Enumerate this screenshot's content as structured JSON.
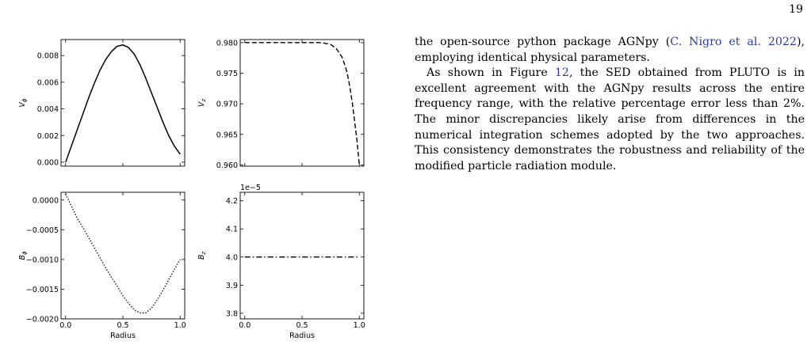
{
  "page": {
    "number": "19"
  },
  "text": {
    "p1_before": "the open-source python package AGNpy (",
    "p1_cite": "C. Nigro et al. 2022",
    "p1_after": "), employing identical physical parameters.",
    "p2_before": "As shown in Figure ",
    "p2_figref": "12",
    "p2_after": ", the SED obtained from PLUTO is in excellent agreement with the AGNpy results across the entire frequency range, with the relative percentage error less than 2%. The minor discrepancies likely arise from differences in the numerical integration schemes adopted by the two approaches. This consistency demonstrates the robustness and reliability of the modified particle radiation module."
  },
  "chart_data": [
    {
      "type": "line",
      "ylabel": "V_ϕ",
      "xlabel": "",
      "xlim": [
        -0.04,
        1.04
      ],
      "ylim": [
        -0.0003,
        0.0092
      ],
      "yticks": [
        0.0,
        0.002,
        0.004,
        0.006,
        0.008
      ],
      "ytick_labels": [
        "0.000",
        "0.002",
        "0.004",
        "0.006",
        "0.008"
      ],
      "xticks": [
        0.0,
        0.5,
        1.0
      ],
      "xtick_labels": [],
      "offset_text": "",
      "line_style": "solid",
      "x": [
        0.0,
        0.05,
        0.1,
        0.15,
        0.2,
        0.25,
        0.3,
        0.35,
        0.4,
        0.45,
        0.5,
        0.55,
        0.6,
        0.65,
        0.7,
        0.75,
        0.8,
        0.85,
        0.9,
        0.95,
        1.0
      ],
      "y": [
        0.0,
        0.0012,
        0.0024,
        0.0036,
        0.0048,
        0.0059,
        0.0069,
        0.0077,
        0.0083,
        0.0087,
        0.0088,
        0.0086,
        0.0081,
        0.0073,
        0.0063,
        0.0052,
        0.0041,
        0.003,
        0.002,
        0.0012,
        0.0006
      ]
    },
    {
      "type": "line",
      "ylabel": "V_z",
      "xlabel": "",
      "xlim": [
        -0.04,
        1.04
      ],
      "ylim": [
        0.9598,
        0.9805
      ],
      "yticks": [
        0.96,
        0.965,
        0.97,
        0.975,
        0.98
      ],
      "ytick_labels": [
        "0.960",
        "0.965",
        "0.970",
        "0.975",
        "0.980"
      ],
      "xticks": [
        0.0,
        0.5,
        1.0
      ],
      "xtick_labels": [],
      "offset_text": "",
      "line_style": "dashed",
      "x": [
        0.0,
        0.1,
        0.2,
        0.3,
        0.4,
        0.5,
        0.6,
        0.65,
        0.7,
        0.75,
        0.8,
        0.85,
        0.88,
        0.9,
        0.92,
        0.94,
        0.96,
        0.98,
        1.0
      ],
      "y": [
        0.98,
        0.98,
        0.98,
        0.98,
        0.98,
        0.98,
        0.98,
        0.98,
        0.9799,
        0.9797,
        0.979,
        0.9776,
        0.976,
        0.9745,
        0.9725,
        0.97,
        0.967,
        0.964,
        0.96
      ]
    },
    {
      "type": "line",
      "ylabel": "B_ϕ",
      "xlabel": "Radius",
      "xlim": [
        -0.04,
        1.04
      ],
      "ylim": [
        -0.002,
        0.00013
      ],
      "yticks": [
        0.0,
        -0.0005,
        -0.001,
        -0.0015,
        -0.002
      ],
      "ytick_labels": [
        "0.0000",
        "−0.0005",
        "−0.0010",
        "−0.0015",
        "−0.0020"
      ],
      "xticks": [
        0.0,
        0.5,
        1.0
      ],
      "xtick_labels": [
        "0.0",
        "0.5",
        "1.0"
      ],
      "offset_text": "",
      "line_style": "dotted",
      "x": [
        0.0,
        0.05,
        0.1,
        0.15,
        0.2,
        0.25,
        0.3,
        0.35,
        0.4,
        0.45,
        0.5,
        0.55,
        0.6,
        0.65,
        0.7,
        0.75,
        0.8,
        0.85,
        0.9,
        0.95,
        1.0
      ],
      "y": [
        0.0001,
        -0.0001,
        -0.0003,
        -0.00046,
        -0.00063,
        -0.0008,
        -0.00097,
        -0.00114,
        -0.0013,
        -0.00145,
        -0.00161,
        -0.00174,
        -0.00185,
        -0.0019,
        -0.0019,
        -0.00182,
        -0.00168,
        -0.00152,
        -0.00134,
        -0.00117,
        -0.001
      ]
    },
    {
      "type": "line",
      "ylabel": "B_z",
      "xlabel": "Radius",
      "xlim": [
        -0.04,
        1.04
      ],
      "ylim": [
        3.78,
        4.23
      ],
      "yticks": [
        3.8,
        3.9,
        4.0,
        4.1,
        4.2
      ],
      "ytick_labels": [
        "3.8",
        "3.9",
        "4.0",
        "4.1",
        "4.2"
      ],
      "xticks": [
        0.0,
        0.5,
        1.0
      ],
      "xtick_labels": [
        "0.0",
        "0.5",
        "1.0"
      ],
      "offset_text": "1e−5",
      "line_style": "dashdot",
      "x": [
        0.0,
        1.0
      ],
      "y": [
        4.0,
        4.0
      ]
    }
  ]
}
